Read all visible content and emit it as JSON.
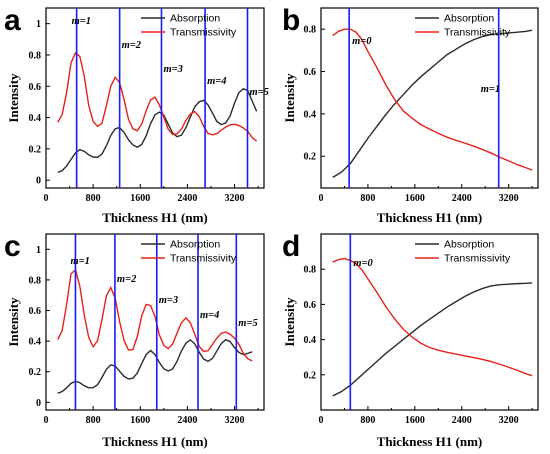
{
  "chart_data": [
    {
      "panel": "a",
      "type": "line",
      "xlabel": "Thickness H1 (nm)",
      "ylabel": "Intensity",
      "xlim": [
        0,
        3700
      ],
      "ylim": [
        -0.05,
        1.1
      ],
      "xticks": [
        0,
        800,
        1600,
        2400,
        3200
      ],
      "yticks": [
        0,
        0.2,
        0.4,
        0.6,
        0.8,
        1
      ],
      "legend_position": "top-right",
      "series": [
        {
          "name": "Absorption",
          "color": "#2b2b2b",
          "x": [
            200,
            275,
            350,
            425,
            500,
            575,
            650,
            725,
            800,
            875,
            950,
            1025,
            1100,
            1175,
            1250,
            1325,
            1400,
            1475,
            1550,
            1625,
            1700,
            1775,
            1850,
            1925,
            2000,
            2075,
            2150,
            2225,
            2300,
            2375,
            2450,
            2525,
            2600,
            2675,
            2750,
            2825,
            2900,
            2975,
            3050,
            3125,
            3200,
            3275,
            3350,
            3425,
            3500,
            3575
          ],
          "y": [
            0.05,
            0.061,
            0.091,
            0.133,
            0.174,
            0.195,
            0.184,
            0.162,
            0.148,
            0.146,
            0.167,
            0.22,
            0.286,
            0.329,
            0.336,
            0.305,
            0.258,
            0.225,
            0.211,
            0.228,
            0.283,
            0.362,
            0.417,
            0.435,
            0.416,
            0.357,
            0.301,
            0.278,
            0.288,
            0.335,
            0.404,
            0.469,
            0.501,
            0.51,
            0.481,
            0.429,
            0.375,
            0.355,
            0.366,
            0.41,
            0.493,
            0.56,
            0.584,
            0.573,
            0.505,
            0.44
          ]
        },
        {
          "name": "Transmissivity",
          "color": "#e8201a",
          "x": [
            200,
            275,
            350,
            425,
            500,
            575,
            650,
            725,
            800,
            875,
            950,
            1025,
            1100,
            1175,
            1250,
            1325,
            1400,
            1475,
            1550,
            1625,
            1700,
            1775,
            1850,
            1925,
            2000,
            2075,
            2150,
            2225,
            2300,
            2375,
            2450,
            2525,
            2600,
            2675,
            2750,
            2825,
            2900,
            2975,
            3050,
            3125,
            3200,
            3275,
            3350,
            3425,
            3500,
            3575
          ],
          "y": [
            0.37,
            0.42,
            0.56,
            0.75,
            0.813,
            0.79,
            0.664,
            0.477,
            0.375,
            0.344,
            0.364,
            0.476,
            0.601,
            0.657,
            0.623,
            0.515,
            0.389,
            0.328,
            0.316,
            0.359,
            0.443,
            0.513,
            0.53,
            0.48,
            0.403,
            0.325,
            0.292,
            0.296,
            0.327,
            0.381,
            0.423,
            0.438,
            0.406,
            0.345,
            0.299,
            0.29,
            0.297,
            0.319,
            0.339,
            0.354,
            0.357,
            0.349,
            0.334,
            0.311,
            0.272,
            0.25
          ]
        }
      ],
      "mode_lines": [
        {
          "label": "m=1",
          "x": 520
        },
        {
          "label": "m=2",
          "x": 1250
        },
        {
          "label": "m=3",
          "x": 1960
        },
        {
          "label": "m=4",
          "x": 2700
        },
        {
          "label": "m=5",
          "x": 3420
        }
      ]
    },
    {
      "panel": "b",
      "type": "line",
      "xlabel": "Thickness H1 (nm)",
      "ylabel": "Intensity",
      "xlim": [
        0,
        3700
      ],
      "ylim": [
        0.05,
        0.9
      ],
      "xticks": [
        0,
        800,
        1600,
        2400,
        3200
      ],
      "yticks": [
        0.2,
        0.4,
        0.6,
        0.8
      ],
      "legend_position": "top-right",
      "series": [
        {
          "name": "Absorption",
          "color": "#2b2b2b",
          "x": [
            200,
            350,
            500,
            650,
            800,
            950,
            1100,
            1250,
            1400,
            1550,
            1700,
            1850,
            2000,
            2150,
            2300,
            2450,
            2600,
            2750,
            2900,
            3050,
            3200,
            3350,
            3500,
            3600
          ],
          "y": [
            0.1,
            0.125,
            0.165,
            0.225,
            0.285,
            0.34,
            0.395,
            0.445,
            0.49,
            0.535,
            0.575,
            0.61,
            0.645,
            0.68,
            0.705,
            0.73,
            0.75,
            0.765,
            0.775,
            0.778,
            0.782,
            0.786,
            0.79,
            0.795
          ]
        },
        {
          "name": "Transmissivity",
          "color": "#e8201a",
          "x": [
            200,
            300,
            400,
            500,
            600,
            700,
            800,
            950,
            1100,
            1250,
            1400,
            1550,
            1700,
            1850,
            2000,
            2150,
            2300,
            2450,
            2600,
            2750,
            2900,
            3050,
            3200,
            3350,
            3500,
            3600
          ],
          "y": [
            0.77,
            0.79,
            0.8,
            0.8,
            0.785,
            0.75,
            0.695,
            0.62,
            0.54,
            0.47,
            0.415,
            0.38,
            0.35,
            0.328,
            0.308,
            0.29,
            0.275,
            0.262,
            0.248,
            0.232,
            0.215,
            0.195,
            0.178,
            0.16,
            0.145,
            0.135
          ]
        }
      ],
      "mode_lines": [
        {
          "label": "m=0",
          "x": 480
        },
        {
          "label": "m=1",
          "x": 3030
        }
      ]
    },
    {
      "panel": "c",
      "type": "line",
      "xlabel": "Thickness H1 (nm)",
      "ylabel": "Intensity",
      "xlim": [
        0,
        3700
      ],
      "ylim": [
        -0.05,
        1.1
      ],
      "xticks": [
        0,
        800,
        1600,
        2400,
        3200
      ],
      "yticks": [
        0,
        0.2,
        0.4,
        0.6,
        0.8,
        1
      ],
      "legend_position": "top-right",
      "series": [
        {
          "name": "Absorption",
          "color": "#2b2b2b",
          "x": [
            200,
            275,
            350,
            425,
            500,
            575,
            650,
            725,
            800,
            875,
            950,
            1025,
            1100,
            1175,
            1250,
            1325,
            1400,
            1475,
            1550,
            1625,
            1700,
            1775,
            1850,
            1925,
            2000,
            2075,
            2150,
            2225,
            2300,
            2375,
            2450,
            2525,
            2600,
            2675,
            2750,
            2825,
            2900,
            2975,
            3050,
            3125,
            3200,
            3275,
            3350,
            3425,
            3500
          ],
          "y": [
            0.06,
            0.071,
            0.095,
            0.124,
            0.138,
            0.128,
            0.108,
            0.095,
            0.096,
            0.115,
            0.163,
            0.215,
            0.245,
            0.237,
            0.203,
            0.17,
            0.153,
            0.158,
            0.192,
            0.254,
            0.312,
            0.339,
            0.312,
            0.26,
            0.219,
            0.205,
            0.219,
            0.269,
            0.337,
            0.387,
            0.408,
            0.382,
            0.327,
            0.283,
            0.268,
            0.287,
            0.336,
            0.384,
            0.409,
            0.397,
            0.357,
            0.326,
            0.312,
            0.32,
            0.33
          ]
        },
        {
          "name": "Transmissivity",
          "color": "#e8201a",
          "x": [
            200,
            275,
            350,
            425,
            500,
            575,
            650,
            725,
            800,
            875,
            950,
            1025,
            1100,
            1175,
            1250,
            1325,
            1400,
            1475,
            1550,
            1625,
            1700,
            1775,
            1850,
            1925,
            2000,
            2075,
            2150,
            2225,
            2300,
            2375,
            2450,
            2525,
            2600,
            2675,
            2750,
            2825,
            2900,
            2975,
            3050,
            3125,
            3200,
            3275,
            3350,
            3425,
            3500
          ],
          "y": [
            0.41,
            0.47,
            0.64,
            0.84,
            0.866,
            0.758,
            0.569,
            0.424,
            0.364,
            0.402,
            0.541,
            0.696,
            0.75,
            0.68,
            0.526,
            0.404,
            0.342,
            0.345,
            0.431,
            0.566,
            0.64,
            0.633,
            0.56,
            0.44,
            0.371,
            0.351,
            0.381,
            0.454,
            0.521,
            0.552,
            0.52,
            0.444,
            0.366,
            0.333,
            0.337,
            0.378,
            0.42,
            0.451,
            0.46,
            0.445,
            0.419,
            0.379,
            0.319,
            0.285,
            0.27
          ]
        }
      ],
      "mode_lines": [
        {
          "label": "m=1",
          "x": 500
        },
        {
          "label": "m=2",
          "x": 1170
        },
        {
          "label": "m=3",
          "x": 1880
        },
        {
          "label": "m=4",
          "x": 2580
        },
        {
          "label": "m=5",
          "x": 3230
        }
      ]
    },
    {
      "panel": "d",
      "type": "line",
      "xlabel": "Thickness H1 (nm)",
      "ylabel": "Intensity",
      "xlim": [
        0,
        3700
      ],
      "ylim": [
        0.0,
        1.0
      ],
      "xticks": [
        0,
        800,
        1600,
        2400,
        3200
      ],
      "yticks": [
        0.2,
        0.4,
        0.6,
        0.8
      ],
      "legend_position": "top-right",
      "series": [
        {
          "name": "Absorption",
          "color": "#2b2b2b",
          "x": [
            200,
            350,
            500,
            650,
            800,
            950,
            1100,
            1250,
            1400,
            1550,
            1700,
            1850,
            2000,
            2150,
            2300,
            2450,
            2600,
            2750,
            2900,
            3050,
            3200,
            3350,
            3500,
            3600
          ],
          "y": [
            0.08,
            0.105,
            0.14,
            0.185,
            0.23,
            0.275,
            0.32,
            0.36,
            0.4,
            0.44,
            0.48,
            0.515,
            0.55,
            0.585,
            0.615,
            0.645,
            0.67,
            0.69,
            0.705,
            0.712,
            0.715,
            0.718,
            0.72,
            0.722
          ]
        },
        {
          "name": "Transmissivity",
          "color": "#e8201a",
          "x": [
            200,
            300,
            400,
            500,
            600,
            700,
            800,
            950,
            1100,
            1250,
            1400,
            1550,
            1700,
            1850,
            2000,
            2150,
            2300,
            2450,
            2600,
            2750,
            2900,
            3050,
            3200,
            3350,
            3500,
            3600
          ],
          "y": [
            0.84,
            0.855,
            0.86,
            0.85,
            0.83,
            0.795,
            0.745,
            0.67,
            0.59,
            0.52,
            0.46,
            0.415,
            0.38,
            0.355,
            0.34,
            0.328,
            0.318,
            0.308,
            0.298,
            0.288,
            0.275,
            0.26,
            0.243,
            0.225,
            0.205,
            0.195
          ]
        }
      ],
      "mode_lines": [
        {
          "label": "m=0",
          "x": 500
        }
      ]
    }
  ]
}
